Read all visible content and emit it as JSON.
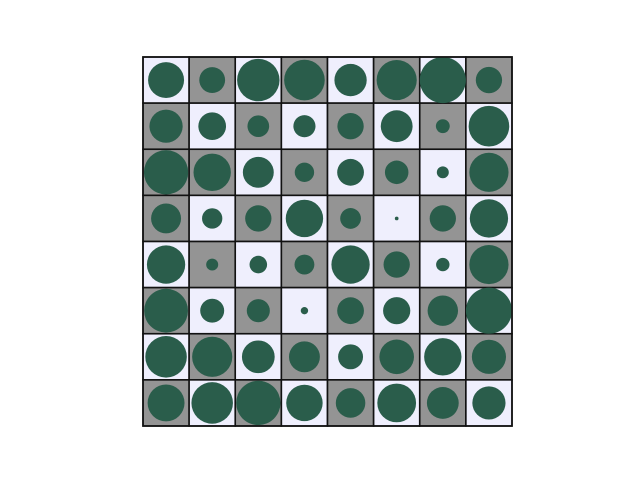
{
  "chart_data": {
    "type": "heatmap",
    "subtype": "hinton",
    "rows": 8,
    "cols": 8,
    "max_weight": 1.0,
    "colors": {
      "background": "#ffffff",
      "circle": "#2a5d4b",
      "cell_light": "#efeffd",
      "cell_dark": "#949494",
      "cell_border": "#111111"
    },
    "cell_shade": [
      [
        "light",
        "dark",
        "light",
        "dark",
        "light",
        "dark",
        "light",
        "dark"
      ],
      [
        "dark",
        "light",
        "dark",
        "light",
        "dark",
        "light",
        "dark",
        "light"
      ],
      [
        "dark",
        "dark",
        "light",
        "dark",
        "light",
        "dark",
        "light",
        "dark"
      ],
      [
        "dark",
        "light",
        "dark",
        "light",
        "dark",
        "light",
        "dark",
        "light"
      ],
      [
        "light",
        "dark",
        "light",
        "dark",
        "light",
        "dark",
        "light",
        "dark"
      ],
      [
        "dark",
        "light",
        "dark",
        "light",
        "dark",
        "light",
        "dark",
        "light"
      ],
      [
        "light",
        "dark",
        "light",
        "dark",
        "light",
        "dark",
        "light",
        "dark"
      ],
      [
        "dark",
        "light",
        "dark",
        "light",
        "dark",
        "light",
        "dark",
        "light"
      ]
    ],
    "values": [
      [
        0.78,
        0.56,
        0.92,
        0.88,
        0.7,
        0.87,
        1.0,
        0.57
      ],
      [
        0.72,
        0.6,
        0.47,
        0.48,
        0.57,
        0.69,
        0.3,
        0.88
      ],
      [
        0.96,
        0.81,
        0.67,
        0.42,
        0.58,
        0.51,
        0.26,
        0.85
      ],
      [
        0.65,
        0.44,
        0.57,
        0.81,
        0.45,
        0.08,
        0.57,
        0.83
      ],
      [
        0.83,
        0.26,
        0.38,
        0.43,
        0.83,
        0.57,
        0.29,
        0.85
      ],
      [
        0.95,
        0.52,
        0.5,
        0.16,
        0.58,
        0.59,
        0.66,
        1.0
      ],
      [
        0.9,
        0.87,
        0.71,
        0.67,
        0.54,
        0.75,
        0.81,
        0.74
      ],
      [
        0.8,
        0.9,
        0.96,
        0.79,
        0.64,
        0.84,
        0.69,
        0.72
      ]
    ]
  }
}
